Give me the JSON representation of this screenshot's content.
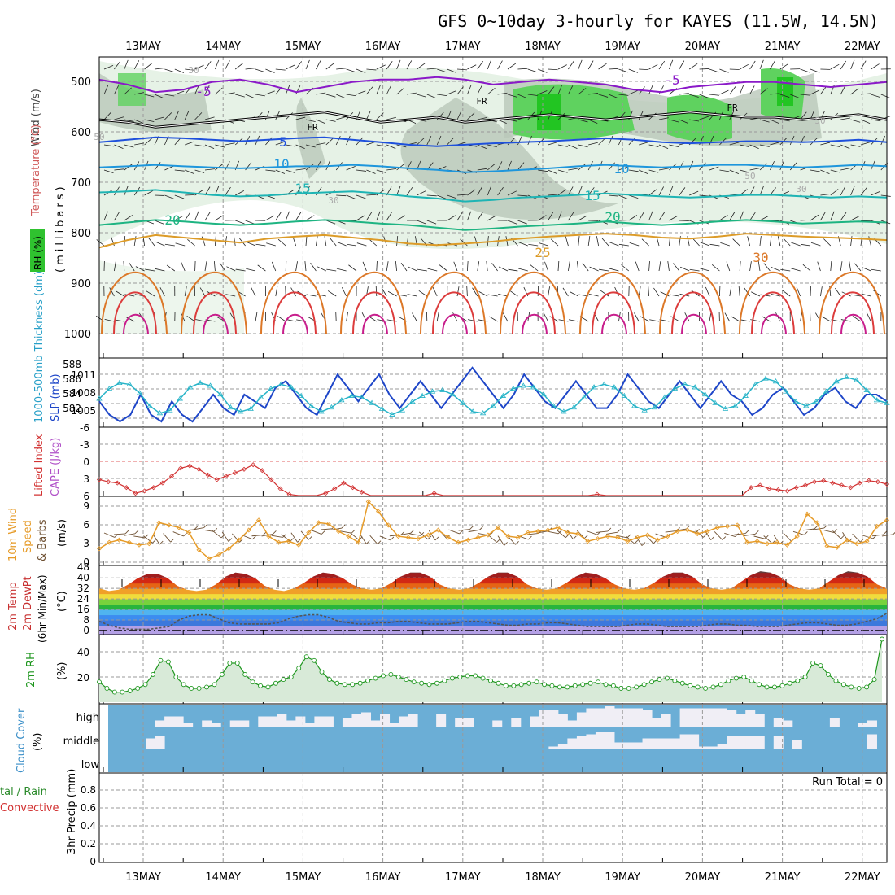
{
  "title": "GFS 0~10day 3-hourly for KAYES (11.5W, 14.5N)",
  "dates": [
    "13MAY",
    "14MAY",
    "15MAY",
    "16MAY",
    "17MAY",
    "18MAY",
    "19MAY",
    "20MAY",
    "21MAY",
    "22MAY"
  ],
  "colors": {
    "grid": "#999999",
    "rh_light": "#e6f2e6",
    "rh_gray": "#b9c7b9",
    "rh_green": "#5fd25f",
    "rh_bright": "#22c522",
    "temp_purple": "#8a19c8",
    "temp_blue": "#1e50dc",
    "temp_sky": "#1e96dc",
    "temp_teal": "#1eb4b4",
    "temp_green": "#1eb482",
    "temp_gold": "#dc9b28",
    "temp_orange": "#dc7828",
    "temp_red": "#dc3c3c",
    "temp_magenta": "#c81e8c",
    "slp": "#1e46c8",
    "thickness": "#28b4c8",
    "lifted": "#d23232",
    "wind10": "#e69b28",
    "barbs": "#6e5032",
    "rh2m": "#1e961e",
    "cloud": "#6baed6",
    "cloud_fill": "#f0eef5"
  },
  "panels": {
    "upper": {
      "ylabel_wind": "Wind (m/s)",
      "ylabel_temp": "Temperature (°C)",
      "ylabel_mb": "(millibars)",
      "ylabel_rh": "RH (%)",
      "yticks": [
        "500",
        "600",
        "700",
        "800",
        "900",
        "1000"
      ],
      "labels": [
        {
          "text": "-5",
          "cls": "temp_purple"
        },
        {
          "text": "-5",
          "cls": "temp_purple"
        },
        {
          "text": "FR",
          "cls": "black"
        },
        {
          "text": "FR",
          "cls": "black"
        },
        {
          "text": "FR",
          "cls": "black"
        },
        {
          "text": "5",
          "cls": "temp_blue"
        },
        {
          "text": "10",
          "cls": "temp_sky"
        },
        {
          "text": "10",
          "cls": "temp_sky"
        },
        {
          "text": "15",
          "cls": "temp_teal"
        },
        {
          "text": "15",
          "cls": "temp_teal"
        },
        {
          "text": "20",
          "cls": "temp_green"
        },
        {
          "text": "20",
          "cls": "temp_green"
        },
        {
          "text": "25",
          "cls": "temp_gold"
        },
        {
          "text": "30",
          "cls": "temp_orange"
        },
        {
          "text": "30",
          "cls": "gray"
        },
        {
          "text": "50",
          "cls": "gray"
        },
        {
          "text": "30",
          "cls": "gray"
        },
        {
          "text": "50",
          "cls": "gray"
        },
        {
          "text": "30",
          "cls": "gray"
        },
        {
          "text": "50",
          "cls": "gray"
        }
      ]
    },
    "slp": {
      "ylabel_thk": "1000-500mb Thickness (dm)",
      "ylabel_slp": "SLP (mb)",
      "left_ticks": [
        "588",
        "586",
        "584",
        "582"
      ],
      "right_ticks": [
        "1011",
        "1008",
        "1005"
      ]
    },
    "lifted": {
      "ylabel_li": "Lifted Index",
      "ylabel_cape": "CAPE (J/kg)",
      "yticks": [
        "-6",
        "-3",
        "0",
        "3",
        "6"
      ]
    },
    "wind10": {
      "ylabel_a": "10m Wind",
      "ylabel_b": "Speed",
      "ylabel_c": "& Barbs",
      "ylabel_unit": "(m/s)",
      "yticks": [
        "9",
        "6",
        "3",
        "0"
      ]
    },
    "temp2m": {
      "ylabel_a": "2m Temp",
      "ylabel_b": "2m DewPt",
      "ylabel_c": "(6hr Min/Max)",
      "ylabel_unit": "(°C)",
      "yticks": [
        "48",
        "40",
        "32",
        "24",
        "16",
        "8",
        "0"
      ]
    },
    "rh2m": {
      "ylabel_a": "2m RH",
      "ylabel_unit": "(%)",
      "yticks": [
        "40",
        "20"
      ]
    },
    "cloud": {
      "ylabel_a": "Cloud Cover",
      "ylabel_unit": "(%)",
      "levels": [
        "high",
        "middle",
        "low"
      ]
    },
    "precip": {
      "ylabel_a": "tal / Rain",
      "ylabel_b": "Convective",
      "ylabel_c": "3hr Precip (mm)",
      "yticks": [
        "0.8",
        "0.6",
        "0.4",
        "0.2",
        "0"
      ],
      "run_total": "Run Total = 0"
    }
  },
  "chart_data": [
    {
      "type": "line",
      "name_panel": "upper-air cross section",
      "x": "3-hourly steps from 12 MAY 12Z to 22 MAY 06Z",
      "ylim": [
        450,
        1050
      ],
      "series": [
        {
          "label": "-5",
          "values": [
            495,
            505,
            520,
            515,
            500,
            495,
            505,
            520,
            510,
            500,
            495,
            495,
            490,
            495,
            505,
            500,
            495,
            500,
            505,
            515,
            520,
            510,
            505,
            500,
            500,
            505,
            510,
            505,
            500
          ]
        },
        {
          "label": "FR",
          "values": [
            575,
            580,
            590,
            585,
            580,
            575,
            570,
            565,
            560,
            570,
            580,
            575,
            570,
            580,
            575,
            570,
            565,
            570,
            575,
            570,
            565,
            560,
            565,
            570,
            570,
            575,
            570,
            565,
            575
          ]
        },
        {
          "label": "5",
          "values": [
            620,
            615,
            610,
            612,
            615,
            618,
            615,
            612,
            610,
            615,
            620,
            625,
            628,
            625,
            622,
            620,
            618,
            615,
            612,
            615,
            620,
            622,
            620,
            618,
            618,
            620,
            618,
            615,
            620
          ]
        },
        {
          "label": "10",
          "values": [
            670,
            668,
            665,
            668,
            670,
            672,
            670,
            668,
            668,
            665,
            668,
            672,
            675,
            680,
            678,
            675,
            672,
            668,
            665,
            668,
            670,
            668,
            665,
            665,
            668,
            670,
            668,
            665,
            668
          ]
        },
        {
          "label": "15",
          "values": [
            720,
            718,
            715,
            720,
            725,
            728,
            726,
            722,
            720,
            718,
            722,
            728,
            732,
            738,
            735,
            730,
            728,
            725,
            722,
            725,
            728,
            730,
            728,
            725,
            725,
            728,
            730,
            728,
            730
          ]
        },
        {
          "label": "20",
          "values": [
            785,
            780,
            775,
            778,
            782,
            785,
            782,
            778,
            775,
            778,
            782,
            785,
            790,
            795,
            792,
            788,
            785,
            782,
            778,
            782,
            785,
            782,
            778,
            775,
            778,
            782,
            780,
            778,
            780
          ]
        },
        {
          "label": "25",
          "values": [
            830,
            815,
            805,
            810,
            815,
            820,
            812,
            808,
            805,
            810,
            815,
            822,
            825,
            822,
            818,
            812,
            808,
            805,
            802,
            805,
            810,
            812,
            808,
            802,
            805,
            808,
            810,
            812,
            815
          ]
        }
      ]
    },
    {
      "type": "line",
      "name_panel": "slp-thickness",
      "series": [
        {
          "label": "SLP",
          "values": [
            1007,
            1005,
            1004,
            1005,
            1008,
            1005,
            1004,
            1007,
            1005,
            1004,
            1006,
            1008,
            1006,
            1005,
            1008,
            1007,
            1006,
            1009,
            1010,
            1008,
            1006,
            1005,
            1008,
            1011,
            1009,
            1007,
            1009,
            1011,
            1008,
            1006,
            1008,
            1010,
            1008,
            1006,
            1008,
            1010,
            1012,
            1010,
            1008,
            1006,
            1008,
            1011,
            1009,
            1007,
            1006,
            1008,
            1010,
            1008,
            1006,
            1006,
            1008,
            1011,
            1009,
            1007,
            1006,
            1008,
            1010,
            1008,
            1006,
            1008,
            1010,
            1008,
            1007,
            1005,
            1006,
            1008,
            1009,
            1007,
            1005,
            1006,
            1008,
            1009,
            1007,
            1006,
            1008,
            1008,
            1007
          ]
        },
        {
          "label": "Thickness",
          "values": [
            584.2,
            585.6,
            586.4,
            586.2,
            585.0,
            583.2,
            582.2,
            582.6,
            584.2,
            585.8,
            586.4,
            586.0,
            584.8,
            583.0,
            582.4,
            582.8,
            584.4,
            585.6,
            586.2,
            585.8,
            584.6,
            583.2,
            582.4,
            583.0,
            584.0,
            584.6,
            584.4,
            583.6,
            582.8,
            582.0,
            582.6,
            583.8,
            584.6,
            585.2,
            585.4,
            584.8,
            583.6,
            582.4,
            582.2,
            583.2,
            584.6,
            585.6,
            586.0,
            585.8,
            584.8,
            583.2,
            582.4,
            583.0,
            584.4,
            585.8,
            586.2,
            585.8,
            584.6,
            583.2,
            582.6,
            583.0,
            584.4,
            585.6,
            586.2,
            585.8,
            584.8,
            583.6,
            582.8,
            583.2,
            584.6,
            586.2,
            587.0,
            586.6,
            585.2,
            583.8,
            583.2,
            583.8,
            585.2,
            586.6,
            587.2,
            586.8,
            585.4,
            584.0,
            583.6
          ]
        }
      ]
    },
    {
      "type": "line",
      "name_panel": "lifted-index",
      "ylim": [
        6,
        -6
      ],
      "values": [
        3.2,
        3.6,
        3.8,
        4.6,
        5.6,
        5.2,
        4.6,
        3.8,
        2.6,
        1.2,
        0.8,
        1.4,
        2.4,
        3.2,
        2.6,
        2.0,
        1.4,
        0.6,
        1.6,
        3.2,
        4.8,
        5.8,
        6.0,
        6.0,
        6.0,
        5.6,
        4.8,
        3.8,
        4.6,
        5.4,
        6.0,
        6.0,
        6.0,
        6.0,
        6.0,
        6.0,
        6.0,
        5.6,
        6.0,
        6.0,
        6.0,
        6.0,
        6.0,
        6.0,
        6.0,
        6.0,
        6.0,
        6.0,
        6.0,
        6.0,
        6.0,
        6.0,
        6.0,
        6.0,
        6.0,
        5.8,
        6.0,
        6.0,
        6.0,
        6.0,
        6.0,
        6.0,
        6.0,
        6.0,
        6.0,
        6.0,
        6.0,
        6.0,
        6.0,
        6.0,
        6.0,
        6.0,
        4.6,
        4.2,
        4.8,
        5.0,
        5.2,
        4.6,
        4.2,
        3.6,
        3.4,
        3.8,
        4.2,
        4.6,
        3.8,
        3.4,
        3.6,
        4.0
      ]
    },
    {
      "type": "line",
      "name_panel": "10m-wind",
      "ylim": [
        0,
        10
      ],
      "values": [
        2.2,
        3.2,
        3.6,
        3.2,
        2.8,
        3.0,
        6.4,
        6.0,
        5.6,
        4.8,
        2.0,
        0.6,
        1.2,
        2.2,
        3.6,
        5.2,
        6.8,
        4.2,
        3.2,
        3.4,
        2.8,
        4.8,
        6.4,
        6.2,
        5.0,
        4.2,
        3.2,
        9.8,
        8.2,
        6.0,
        4.2,
        4.0,
        3.8,
        4.4,
        5.2,
        4.0,
        3.2,
        3.6,
        4.0,
        4.4,
        5.6,
        4.2,
        4.0,
        4.8,
        5.0,
        5.2,
        5.6,
        4.8,
        4.6,
        3.4,
        3.8,
        4.2,
        4.0,
        3.4,
        4.0,
        4.4,
        3.6,
        4.2,
        5.0,
        5.2,
        4.6,
        5.0,
        5.6,
        5.8,
        6.0,
        3.2,
        3.4,
        3.0,
        3.2,
        2.8,
        4.2,
        7.8,
        6.4,
        2.6,
        2.4,
        3.6,
        3.0,
        3.4,
        5.8,
        6.8
      ]
    },
    {
      "type": "area",
      "name_panel": "2m-temp",
      "ylim": [
        -2,
        48
      ],
      "temp": [
        32,
        30,
        31,
        35,
        40,
        43,
        43,
        40,
        34,
        31,
        30,
        31,
        35,
        41,
        44,
        43,
        40,
        34,
        31,
        30,
        32,
        36,
        41,
        44,
        43,
        40,
        35,
        32,
        31,
        32,
        36,
        41,
        44,
        44,
        41,
        35,
        32,
        31,
        32,
        36,
        41,
        44,
        44,
        41,
        35,
        32,
        31,
        32,
        36,
        41,
        44,
        43,
        40,
        35,
        32,
        31,
        32,
        36,
        41,
        44,
        44,
        41,
        35,
        32,
        31,
        32,
        37,
        42,
        45,
        44,
        41,
        35,
        32,
        31,
        32,
        37,
        42,
        45,
        44,
        41,
        35,
        32
      ],
      "dewpoint": [
        7,
        4,
        2,
        1,
        1,
        1,
        2,
        3,
        8,
        11,
        12,
        12,
        9,
        6,
        5,
        5,
        5,
        5,
        6,
        9,
        11,
        12,
        12,
        10,
        7,
        6,
        5,
        5,
        6,
        6,
        7,
        7,
        6,
        5,
        5,
        5,
        6,
        7,
        7,
        6,
        5,
        4,
        4,
        5,
        5,
        6,
        6,
        5,
        4,
        3,
        3,
        3,
        3,
        4,
        5,
        5,
        4,
        3,
        3,
        3,
        3,
        4,
        5,
        5,
        4,
        4,
        3,
        3,
        3,
        4,
        5,
        6,
        6,
        5,
        4,
        4,
        5,
        7,
        9,
        13
      ]
    },
    {
      "type": "line",
      "name_panel": "2m-rh",
      "ylim": [
        0,
        50
      ],
      "values": [
        16,
        11,
        8,
        8,
        9,
        11,
        14,
        22,
        33,
        32,
        20,
        14,
        11,
        11,
        12,
        14,
        22,
        31,
        31,
        22,
        16,
        13,
        12,
        15,
        18,
        20,
        27,
        36,
        33,
        24,
        18,
        15,
        14,
        14,
        15,
        17,
        19,
        21,
        22,
        20,
        18,
        16,
        15,
        14,
        15,
        17,
        19,
        20,
        21,
        21,
        19,
        17,
        15,
        13,
        13,
        14,
        15,
        16,
        14,
        13,
        12,
        12,
        13,
        14,
        15,
        16,
        14,
        13,
        11,
        11,
        12,
        14,
        16,
        18,
        19,
        17,
        15,
        13,
        12,
        11,
        12,
        14,
        17,
        19,
        20,
        17,
        14,
        12,
        12,
        13,
        15,
        17,
        20,
        31,
        29,
        22,
        17,
        14,
        12,
        11,
        12,
        18,
        50
      ]
    },
    {
      "type": "bar",
      "name_panel": "cloud-cover",
      "levels": [
        "high",
        "middle",
        "low"
      ],
      "high": [
        0,
        0,
        0,
        0,
        0,
        0.3,
        0.5,
        0.5,
        0.2,
        0,
        0.3,
        0.2,
        0,
        0.3,
        0.3,
        0,
        0.5,
        0.5,
        0.6,
        0.3,
        0.5,
        0.2,
        0.5,
        0.5,
        0,
        0.4,
        0.6,
        0.7,
        0.3,
        0.6,
        0.2,
        0.5,
        0.6,
        0,
        0,
        0.6,
        0,
        0.4,
        0.4,
        0,
        0,
        0.3,
        0,
        0.4,
        0,
        0.5,
        0.8,
        0.8,
        0.6,
        0.3,
        0.7,
        0.9,
        0.9,
        1,
        0.9,
        0.9,
        0.9,
        0.8,
        0.4,
        0.6,
        0,
        0.9,
        0.9,
        0.9,
        0.9,
        0.9,
        0.8,
        0.6,
        0.8,
        0.6,
        0,
        0.4,
        0.3,
        0,
        0,
        0,
        0,
        0.4,
        0,
        0,
        0.2,
        0.3,
        0
      ],
      "middle": [
        0,
        0,
        0,
        0,
        0.5,
        0.6,
        0,
        0,
        0,
        0,
        0,
        0,
        0,
        0,
        0,
        0,
        0,
        0,
        0,
        0,
        0,
        0,
        0,
        0,
        0,
        0,
        0,
        0,
        0,
        0,
        0,
        0,
        0,
        0,
        0,
        0,
        0,
        0,
        0,
        0,
        0,
        0,
        0,
        0,
        0,
        0,
        0,
        0.1,
        0.2,
        0.5,
        0.6,
        0.7,
        0.8,
        0.8,
        0.3,
        0.3,
        0.3,
        0.5,
        0.5,
        0.5,
        0.5,
        0.7,
        0.7,
        0.1,
        0.1,
        0.2,
        0.6,
        0.6,
        0.6,
        0.6,
        0,
        0.6,
        0,
        0.4,
        0,
        0,
        0,
        0,
        0,
        0,
        0,
        0.7,
        0
      ]
    },
    {
      "type": "bar",
      "name_panel": "precip",
      "ylim": [
        0,
        1
      ],
      "values": []
    }
  ]
}
